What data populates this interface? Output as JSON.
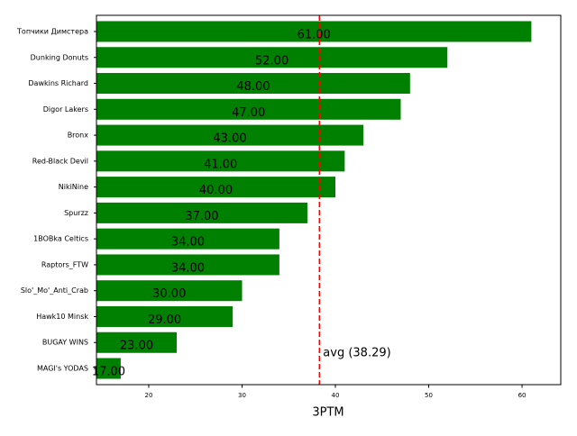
{
  "chart_data": {
    "type": "barh",
    "xlabel": "3PTM",
    "categories": [
      "Топчики Димстера",
      "Dunking Donuts",
      "Dawkins Richard",
      "Digor Lakers",
      "Bronx",
      "Red-Black Devil",
      "NikiNine",
      "Spurzz",
      "1BOBka Celtics",
      "Raptors_FTW",
      "Slo'_Mo'_Anti_Crab",
      "Hawk10 Minsk",
      "BUGAY WINS",
      "MAGI's YODAS"
    ],
    "values": [
      61,
      52,
      48,
      47,
      43,
      41,
      40,
      37,
      34,
      34,
      30,
      29,
      23,
      17
    ],
    "value_labels": [
      "61.00",
      "52.00",
      "48.00",
      "47.00",
      "43.00",
      "41.00",
      "40.00",
      "37.00",
      "34.00",
      "34.00",
      "30.00",
      "29.00",
      "23.00",
      "17.00"
    ],
    "color": "#008000",
    "xlim": [
      14.4,
      64.15
    ],
    "xticks": [
      20,
      30,
      40,
      50,
      60
    ],
    "avg": 38.29,
    "avg_label": "avg (38.29)",
    "avg_color": "#ff0000"
  }
}
